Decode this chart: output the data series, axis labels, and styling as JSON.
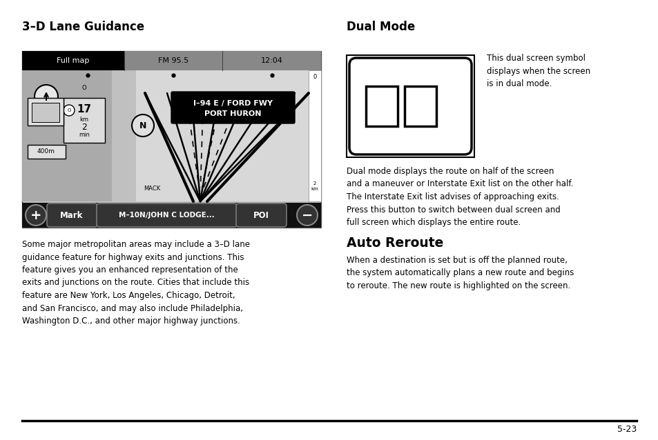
{
  "bg_color": "#ffffff",
  "page_number": "5-23",
  "left_section_title": "3–D Lane Guidance",
  "left_body_text": "Some major metropolitan areas may include a 3–D lane\nguidance feature for highway exits and junctions. This\nfeature gives you an enhanced representation of the\nexits and junctions on the route. Cities that include this\nfeature are New York, Los Angeles, Chicago, Detroit,\nand San Francisco, and may also include Philadelphia,\nWashington D.C., and other major highway junctions.",
  "right_title1": "Dual Mode",
  "right_body1": "Dual mode displays the route on half of the screen\nand a maneuver or Interstate Exit list on the other half.\nThe Interstate Exit list advises of approaching exits.\nPress this button to switch between dual screen and\nfull screen which displays the entire route.",
  "dual_mode_caption": "This dual screen symbol\ndisplays when the screen\nis in dual mode.",
  "right_title2": "Auto Reroute",
  "right_body2": "When a destination is set but is off the planned route,\nthe system automatically plans a new route and begins\nto reroute. The new route is highlighted on the screen.",
  "map_top_bar_color": "#000000",
  "map_bg_color": "#c8c8c8",
  "map_road_color": "#d8d8d8",
  "map_bottom_bar_color": "#111111",
  "sign_color": "#000000",
  "sign_text1": "I–94 E / FORD FWY",
  "sign_text2": "PORT HURON",
  "bar_text": [
    "Full map",
    "FM 95.5",
    "12:04"
  ],
  "bottom_btns": [
    "+",
    "Mark",
    "M–10N∕JOHN C LODGE...",
    "POI",
    "−"
  ]
}
